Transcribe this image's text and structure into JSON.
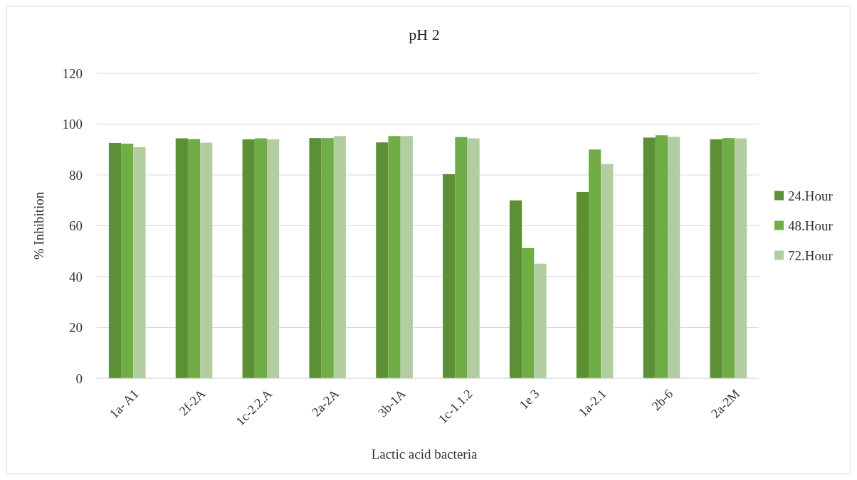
{
  "chart_data": {
    "type": "bar",
    "title": "pH 2",
    "xlabel": "Lactic acid bacteria",
    "ylabel": "% Inhibition",
    "categories": [
      "1a- A1",
      "2f-2A",
      "1c-2.2.A",
      "2a-2A",
      "3b-1A",
      "1c-1.1.2",
      "1e 3",
      "1a-2.1",
      "2b-6",
      "2a-2M"
    ],
    "series": [
      {
        "name": "24.Hour",
        "color": "#5b9035",
        "values": [
          92.6,
          94.4,
          94.0,
          94.5,
          92.8,
          80.3,
          70.0,
          73.3,
          94.7,
          94.0
        ]
      },
      {
        "name": "48.Hour",
        "color": "#70ad47",
        "values": [
          92.3,
          94.1,
          94.4,
          94.5,
          95.3,
          94.9,
          51.2,
          90.0,
          95.6,
          94.5
        ]
      },
      {
        "name": "72.Hour",
        "color": "#b2cda0",
        "values": [
          90.9,
          92.7,
          94.0,
          95.3,
          95.3,
          94.4,
          45.1,
          84.3,
          95.0,
          94.4
        ]
      }
    ],
    "ylim": [
      0,
      120
    ],
    "yticks": [
      0,
      20,
      40,
      60,
      80,
      100,
      120
    ],
    "grid": "y",
    "legend": "right"
  }
}
